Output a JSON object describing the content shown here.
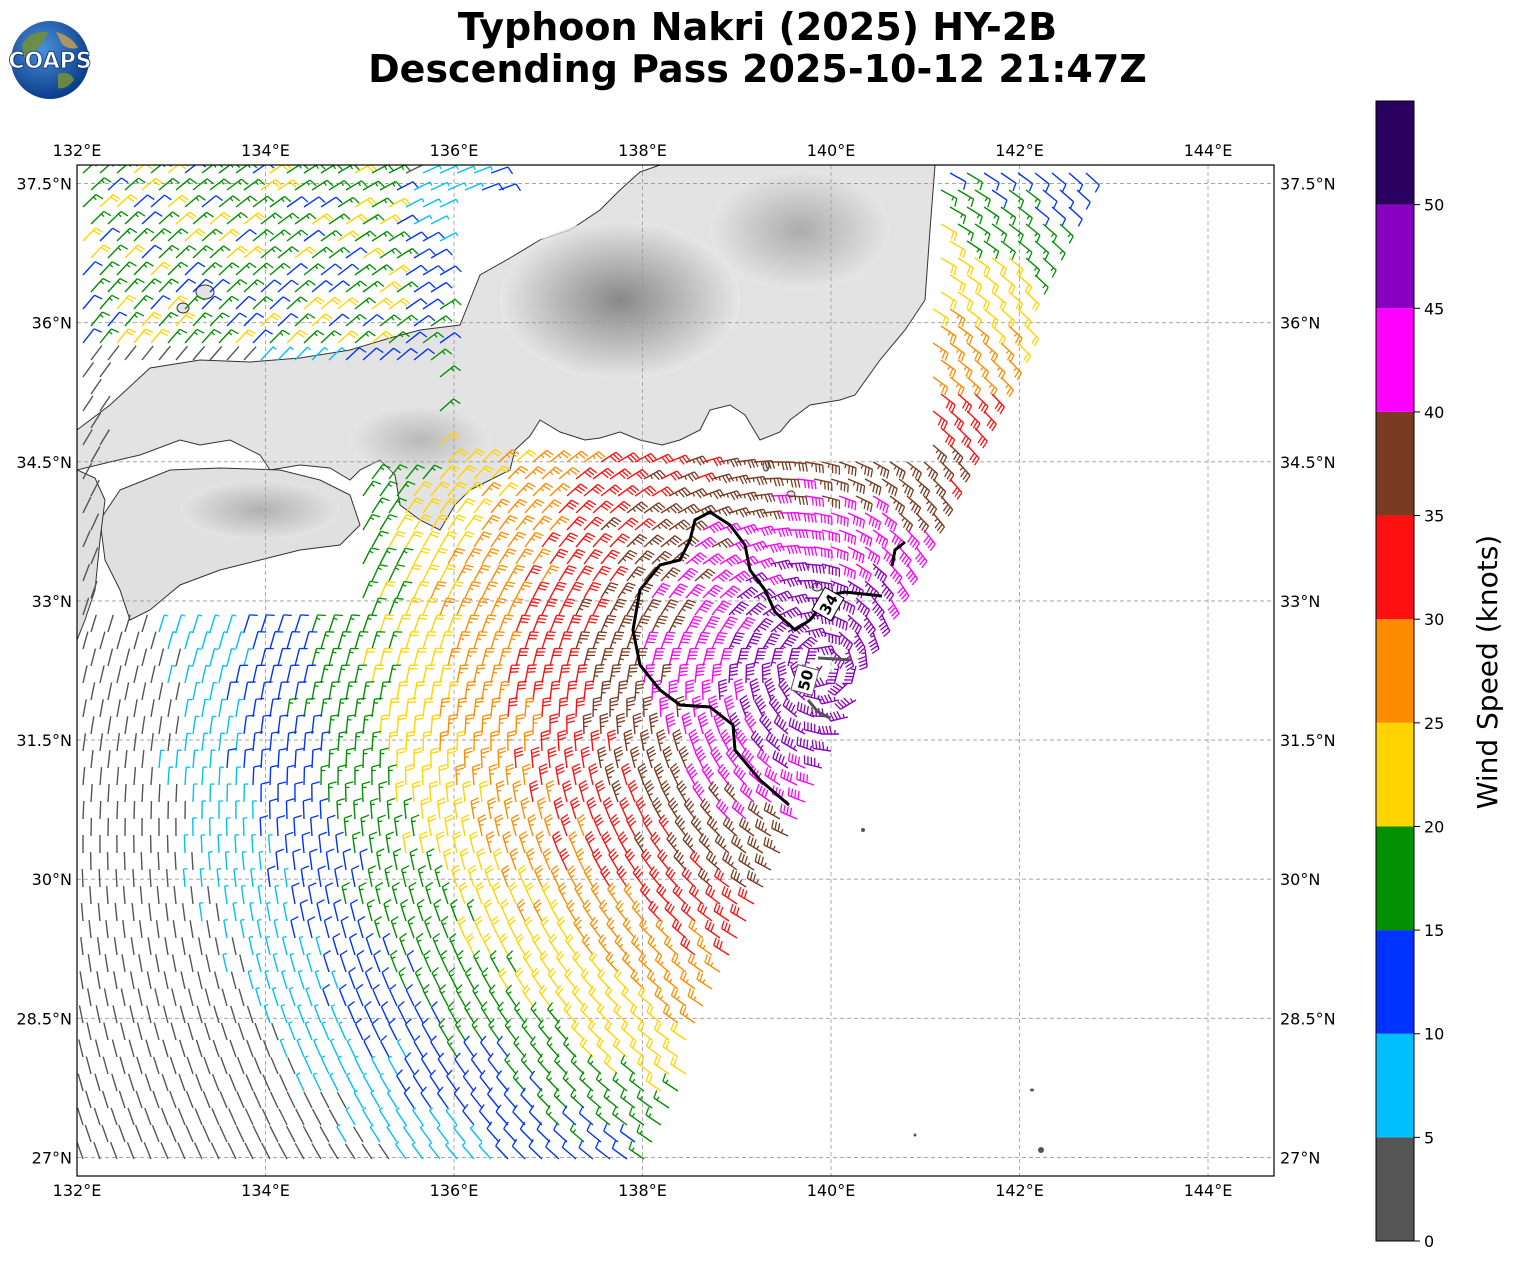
{
  "title_line1": "Typhoon Nakri (2025) HY-2B",
  "title_line2": "Descending Pass 2025-10-12 21:47Z",
  "logo_text": "COAPS",
  "map": {
    "lon_range": [
      132.0,
      144.7
    ],
    "lat_range": [
      26.8,
      37.7
    ],
    "lon_ticks": [
      "132°E",
      "134°E",
      "136°E",
      "138°E",
      "140°E",
      "142°E",
      "144°E"
    ],
    "lat_ticks": [
      "37.5°N",
      "36°N",
      "34.5°N",
      "33°N",
      "31.5°N",
      "30°N",
      "28.5°N",
      "27°N"
    ],
    "gridlines": true,
    "storm_center": {
      "lon": 139.9,
      "lat": 32.3
    },
    "contour_labels": [
      "34",
      "50"
    ]
  },
  "colorbar": {
    "label": "Wind Speed (knots)",
    "ticks": [
      "0",
      "5",
      "10",
      "15",
      "20",
      "25",
      "30",
      "35",
      "40",
      "45",
      "50"
    ],
    "bins": [
      {
        "min": 0,
        "max": 5,
        "color": "#555555"
      },
      {
        "min": 5,
        "max": 10,
        "color": "#00bfff"
      },
      {
        "min": 10,
        "max": 15,
        "color": "#0033ff"
      },
      {
        "min": 15,
        "max": 20,
        "color": "#009000"
      },
      {
        "min": 20,
        "max": 25,
        "color": "#ffd400"
      },
      {
        "min": 25,
        "max": 30,
        "color": "#ff8c00"
      },
      {
        "min": 30,
        "max": 35,
        "color": "#ff1010"
      },
      {
        "min": 35,
        "max": 40,
        "color": "#7a3b22"
      },
      {
        "min": 40,
        "max": 45,
        "color": "#ff00ff"
      },
      {
        "min": 45,
        "max": 50,
        "color": "#8a00c0"
      },
      {
        "min": 50,
        "max": 55,
        "color": "#2a0060"
      }
    ]
  }
}
